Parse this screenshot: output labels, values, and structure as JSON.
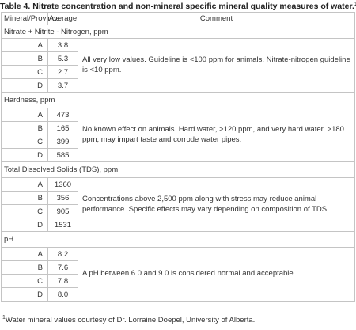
{
  "caption": {
    "text": "Table 4. Nitrate concentration and non-mineral specific mineral quality measures of water.",
    "note_marker": "1"
  },
  "headers": {
    "mineral": "Mineral/Province",
    "average": "Average",
    "comment": "Comment"
  },
  "sections": [
    {
      "title": "Nitrate + Nitrite - Nitrogen, ppm",
      "rows": [
        {
          "province": "A",
          "average": "3.8"
        },
        {
          "province": "B",
          "average": "5.3"
        },
        {
          "province": "C",
          "average": "2.7"
        },
        {
          "province": "D",
          "average": "3.7"
        }
      ],
      "comment": "All very low values. Guideline is <100 ppm for animals. Nitrate-nitrogen guideline is <10 ppm."
    },
    {
      "title": "Hardness, ppm",
      "rows": [
        {
          "province": "A",
          "average": "473"
        },
        {
          "province": "B",
          "average": "165"
        },
        {
          "province": "C",
          "average": "399"
        },
        {
          "province": "D",
          "average": "585"
        }
      ],
      "comment": "No known effect on animals. Hard water, >120 ppm, and very hard water, >180 ppm, may impart taste and corrode water pipes."
    },
    {
      "title": "Total Dissolved Solids (TDS), ppm",
      "rows": [
        {
          "province": "A",
          "average": "1360"
        },
        {
          "province": "B",
          "average": "356"
        },
        {
          "province": "C",
          "average": "905"
        },
        {
          "province": "D",
          "average": "1531"
        }
      ],
      "comment": "Concentrations above 2,500 ppm along with stress may reduce animal performance. Specific effects may vary depending on composition of TDS."
    },
    {
      "title": "pH",
      "rows": [
        {
          "province": "A",
          "average": "8.2"
        },
        {
          "province": "B",
          "average": "7.6"
        },
        {
          "province": "C",
          "average": "7.8"
        },
        {
          "province": "D",
          "average": "8.0"
        }
      ],
      "comment": "A pH between 6.0 and 9.0 is considered normal and acceptable."
    }
  ],
  "footnote": {
    "marker": "1",
    "text": "Water mineral values courtesy of Dr. Lorraine Doepel, University of Alberta."
  }
}
